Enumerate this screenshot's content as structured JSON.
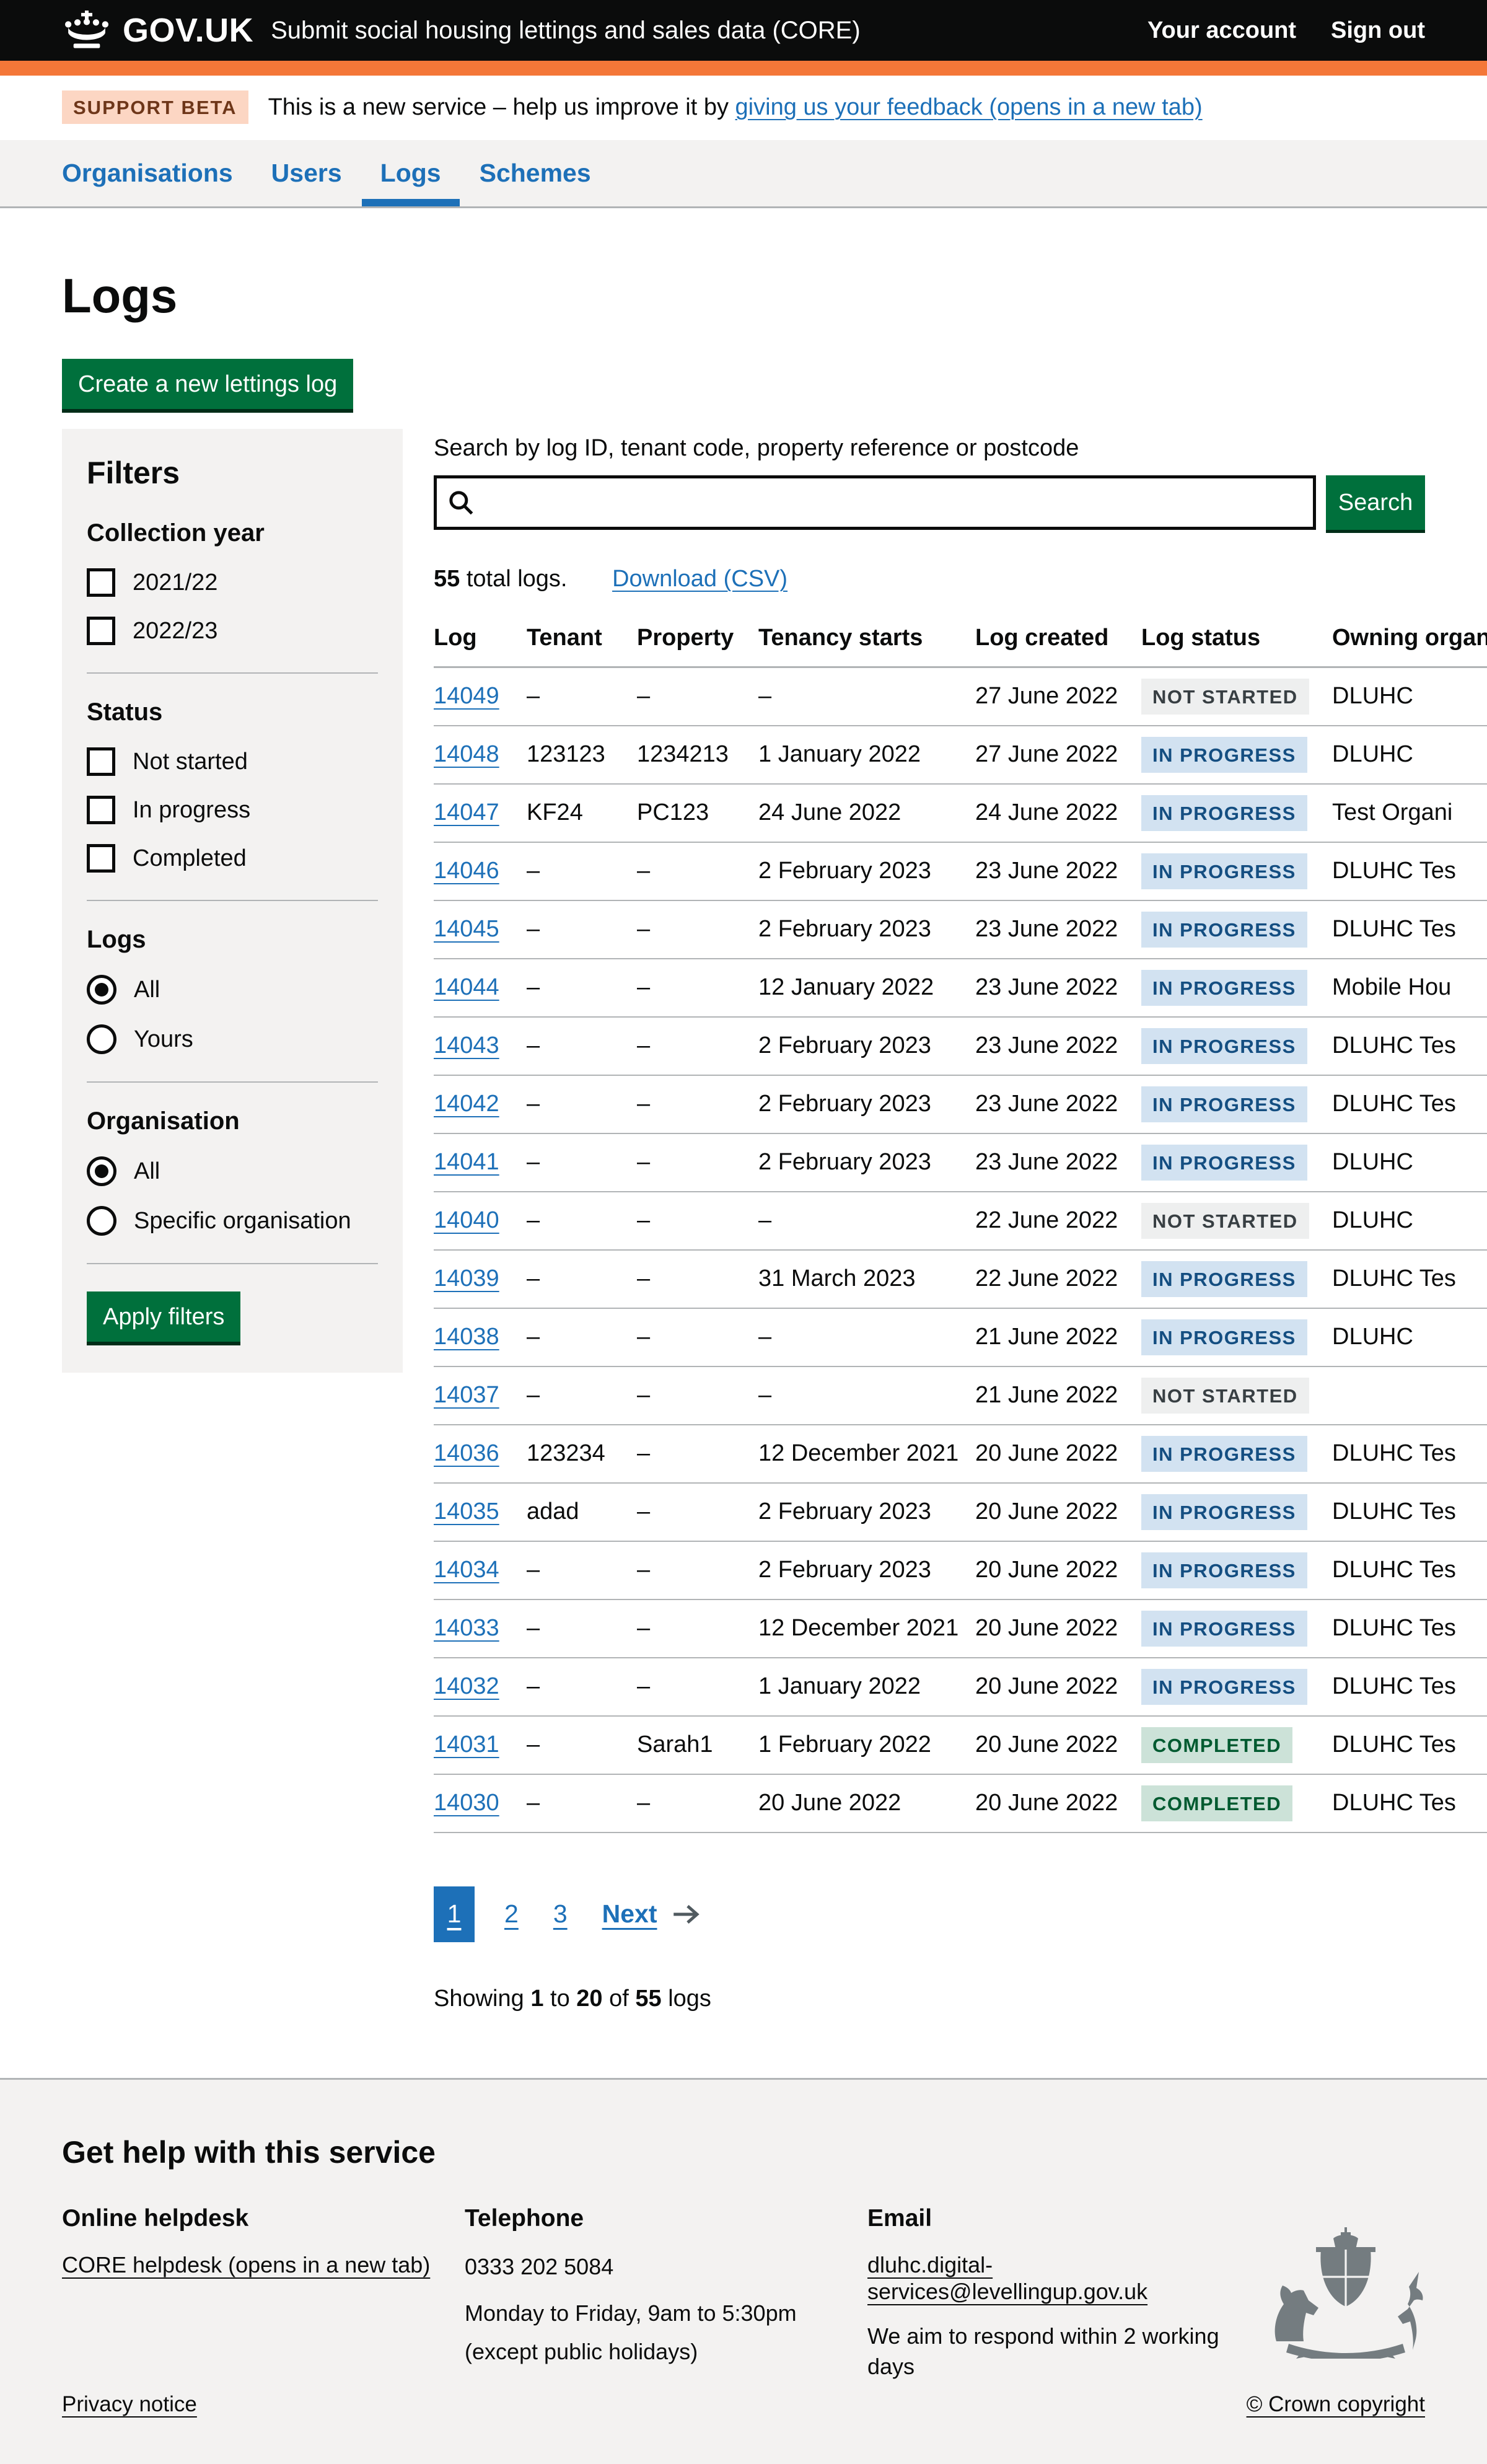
{
  "colors": {
    "brand_black": "#0b0c0c",
    "brand_orange": "#f47738",
    "link_blue": "#1d70b8",
    "button_green": "#00703c",
    "panel_grey": "#f3f2f1",
    "tag_grey_bg": "#eeefef",
    "tag_grey_text": "#383f43",
    "tag_blue_bg": "#d2e2f1",
    "tag_blue_text": "#144e81",
    "tag_green_bg": "#cce2d8",
    "tag_green_text": "#005a30"
  },
  "header": {
    "logotype": "GOV.UK",
    "service_name": "Submit social housing lettings and sales data (CORE)",
    "account_link": "Your account",
    "signout_link": "Sign out"
  },
  "phase_banner": {
    "tag": "SUPPORT BETA",
    "text_before": "This is a new service – help us improve it by ",
    "link_text": "giving us your feedback (opens in a new tab)"
  },
  "nav": {
    "items": [
      {
        "label": "Organisations",
        "active": false
      },
      {
        "label": "Users",
        "active": false
      },
      {
        "label": "Logs",
        "active": true
      },
      {
        "label": "Schemes",
        "active": false
      }
    ]
  },
  "page": {
    "title": "Logs",
    "create_button": "Create a new lettings log"
  },
  "filters": {
    "heading": "Filters",
    "collection_year": {
      "heading": "Collection year",
      "options": [
        "2021/22",
        "2022/23"
      ]
    },
    "status": {
      "heading": "Status",
      "options": [
        "Not started",
        "In progress",
        "Completed"
      ]
    },
    "logs": {
      "heading": "Logs",
      "options": [
        "All",
        "Yours"
      ],
      "selected": "All"
    },
    "organisation": {
      "heading": "Organisation",
      "options": [
        "All",
        "Specific organisation"
      ],
      "selected": "All"
    },
    "apply_button": "Apply filters"
  },
  "search": {
    "label": "Search by log ID, tenant code, property reference or postcode",
    "value": "",
    "button": "Search"
  },
  "results": {
    "count": "55",
    "count_suffix": " total logs.",
    "download_link": "Download (CSV)"
  },
  "table": {
    "headers": [
      "Log",
      "Tenant",
      "Property",
      "Tenancy starts",
      "Log created",
      "Log status",
      "Owning organisation"
    ],
    "rows": [
      {
        "log": "14049",
        "tenant": "–",
        "property": "–",
        "tenancy_starts": "–",
        "log_created": "27 June 2022",
        "status_label": "NOT STARTED",
        "status_type": "grey",
        "owning_org": "DLUHC"
      },
      {
        "log": "14048",
        "tenant": "123123",
        "property": "1234213",
        "tenancy_starts": "1 January 2022",
        "log_created": "27 June 2022",
        "status_label": "IN PROGRESS",
        "status_type": "blue",
        "owning_org": "DLUHC"
      },
      {
        "log": "14047",
        "tenant": "KF24",
        "property": "PC123",
        "tenancy_starts": "24 June 2022",
        "log_created": "24 June 2022",
        "status_label": "IN PROGRESS",
        "status_type": "blue",
        "owning_org": "Test Organi"
      },
      {
        "log": "14046",
        "tenant": "–",
        "property": "–",
        "tenancy_starts": "2 February 2023",
        "log_created": "23 June 2022",
        "status_label": "IN PROGRESS",
        "status_type": "blue",
        "owning_org": "DLUHC Tes"
      },
      {
        "log": "14045",
        "tenant": "–",
        "property": "–",
        "tenancy_starts": "2 February 2023",
        "log_created": "23 June 2022",
        "status_label": "IN PROGRESS",
        "status_type": "blue",
        "owning_org": "DLUHC Tes"
      },
      {
        "log": "14044",
        "tenant": "–",
        "property": "–",
        "tenancy_starts": "12 January 2022",
        "log_created": "23 June 2022",
        "status_label": "IN PROGRESS",
        "status_type": "blue",
        "owning_org": "Mobile Hou"
      },
      {
        "log": "14043",
        "tenant": "–",
        "property": "–",
        "tenancy_starts": "2 February 2023",
        "log_created": "23 June 2022",
        "status_label": "IN PROGRESS",
        "status_type": "blue",
        "owning_org": "DLUHC Tes"
      },
      {
        "log": "14042",
        "tenant": "–",
        "property": "–",
        "tenancy_starts": "2 February 2023",
        "log_created": "23 June 2022",
        "status_label": "IN PROGRESS",
        "status_type": "blue",
        "owning_org": "DLUHC Tes"
      },
      {
        "log": "14041",
        "tenant": "–",
        "property": "–",
        "tenancy_starts": "2 February 2023",
        "log_created": "23 June 2022",
        "status_label": "IN PROGRESS",
        "status_type": "blue",
        "owning_org": "DLUHC"
      },
      {
        "log": "14040",
        "tenant": "–",
        "property": "–",
        "tenancy_starts": "–",
        "log_created": "22 June 2022",
        "status_label": "NOT STARTED",
        "status_type": "grey",
        "owning_org": "DLUHC"
      },
      {
        "log": "14039",
        "tenant": "–",
        "property": "–",
        "tenancy_starts": "31 March 2023",
        "log_created": "22 June 2022",
        "status_label": "IN PROGRESS",
        "status_type": "blue",
        "owning_org": "DLUHC Tes"
      },
      {
        "log": "14038",
        "tenant": "–",
        "property": "–",
        "tenancy_starts": "–",
        "log_created": "21 June 2022",
        "status_label": "IN PROGRESS",
        "status_type": "blue",
        "owning_org": "DLUHC"
      },
      {
        "log": "14037",
        "tenant": "–",
        "property": "–",
        "tenancy_starts": "–",
        "log_created": "21 June 2022",
        "status_label": "NOT STARTED",
        "status_type": "grey",
        "owning_org": ""
      },
      {
        "log": "14036",
        "tenant": "123234",
        "property": "–",
        "tenancy_starts": "12 December 2021",
        "log_created": "20 June 2022",
        "status_label": "IN PROGRESS",
        "status_type": "blue",
        "owning_org": "DLUHC Tes"
      },
      {
        "log": "14035",
        "tenant": "adad",
        "property": "–",
        "tenancy_starts": "2 February 2023",
        "log_created": "20 June 2022",
        "status_label": "IN PROGRESS",
        "status_type": "blue",
        "owning_org": "DLUHC Tes"
      },
      {
        "log": "14034",
        "tenant": "–",
        "property": "–",
        "tenancy_starts": "2 February 2023",
        "log_created": "20 June 2022",
        "status_label": "IN PROGRESS",
        "status_type": "blue",
        "owning_org": "DLUHC Tes"
      },
      {
        "log": "14033",
        "tenant": "–",
        "property": "–",
        "tenancy_starts": "12 December 2021",
        "log_created": "20 June 2022",
        "status_label": "IN PROGRESS",
        "status_type": "blue",
        "owning_org": "DLUHC Tes"
      },
      {
        "log": "14032",
        "tenant": "–",
        "property": "–",
        "tenancy_starts": "1 January 2022",
        "log_created": "20 June 2022",
        "status_label": "IN PROGRESS",
        "status_type": "blue",
        "owning_org": "DLUHC Tes"
      },
      {
        "log": "14031",
        "tenant": "–",
        "property": "Sarah1",
        "tenancy_starts": "1 February 2022",
        "log_created": "20 June 2022",
        "status_label": "COMPLETED",
        "status_type": "green",
        "owning_org": "DLUHC Tes"
      },
      {
        "log": "14030",
        "tenant": "–",
        "property": "–",
        "tenancy_starts": "20 June 2022",
        "log_created": "20 June 2022",
        "status_label": "COMPLETED",
        "status_type": "green",
        "owning_org": "DLUHC Tes"
      }
    ]
  },
  "pagination": {
    "pages": [
      "1",
      "2",
      "3"
    ],
    "current": "1",
    "next_label": "Next"
  },
  "showing": {
    "prefix": "Showing ",
    "from": "1",
    "to_word": " to ",
    "to": "20",
    "of_word": " of ",
    "total": "55",
    "suffix": " logs"
  },
  "footer": {
    "heading": "Get help with this service",
    "helpdesk": {
      "heading": "Online helpdesk",
      "link": "CORE helpdesk (opens in a new tab)"
    },
    "telephone": {
      "heading": "Telephone",
      "number": "0333 202 5084",
      "hours": "Monday to Friday, 9am to 5:30pm",
      "hours2": "(except public holidays)"
    },
    "email": {
      "heading": "Email",
      "address": "dluhc.digital-services@levellingup.gov.uk",
      "note": "We aim to respond within 2 working days"
    },
    "privacy_link": "Privacy notice",
    "copyright": "© Crown copyright"
  }
}
